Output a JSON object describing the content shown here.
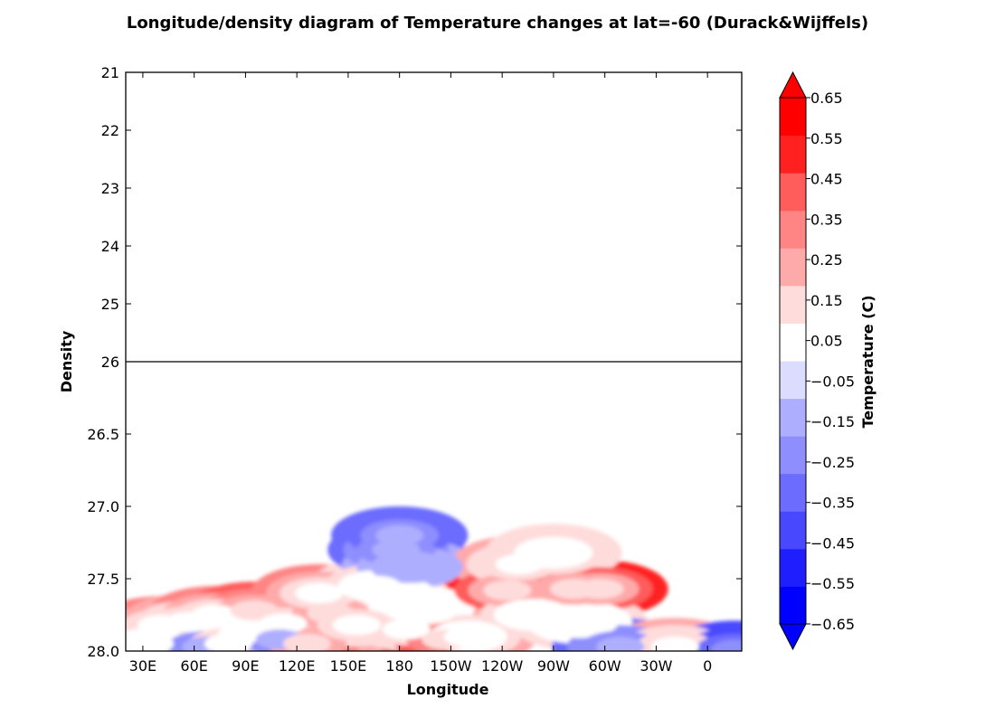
{
  "chart_data": {
    "type": "heatmap",
    "title": "Longitude/density diagram of Temperature changes at lat=-60 (Durack&Wijffels)",
    "xlabel": "Longitude",
    "ylabel": "Density",
    "x_ticks": [
      {
        "label": "30E",
        "lon": 30
      },
      {
        "label": "60E",
        "lon": 60
      },
      {
        "label": "90E",
        "lon": 90
      },
      {
        "label": "120E",
        "lon": 120
      },
      {
        "label": "150E",
        "lon": 150
      },
      {
        "label": "180",
        "lon": 180
      },
      {
        "label": "150W",
        "lon": 210
      },
      {
        "label": "120W",
        "lon": 240
      },
      {
        "label": "90W",
        "lon": 270
      },
      {
        "label": "60W",
        "lon": 300
      },
      {
        "label": "30W",
        "lon": 330
      },
      {
        "label": "0",
        "lon": 360
      }
    ],
    "xlim": [
      20,
      380
    ],
    "upper_panel": {
      "ylim": [
        21,
        26
      ],
      "y_ticks": [
        "21",
        "22",
        "23",
        "24",
        "25",
        "26"
      ],
      "y_values": [
        21,
        22,
        23,
        24,
        25,
        26
      ]
    },
    "lower_panel": {
      "ylim": [
        26,
        28
      ],
      "y_ticks": [
        "26.5",
        "27.0",
        "27.5",
        "28.0"
      ],
      "y_values": [
        26.5,
        27.0,
        27.5,
        28.0
      ]
    },
    "colorbar": {
      "label": "Temperature (C)",
      "levels": [
        -0.65,
        -0.55,
        -0.45,
        -0.35,
        -0.25,
        -0.15,
        -0.05,
        0.05,
        0.15,
        0.25,
        0.35,
        0.45,
        0.55,
        0.65
      ],
      "tick_labels": [
        "−0.65",
        "−0.55",
        "−0.45",
        "−0.35",
        "−0.25",
        "−0.15",
        "−0.05",
        "0.05",
        "0.15",
        "0.25",
        "0.35",
        "0.45",
        "0.55",
        "0.65"
      ],
      "colors": [
        "#0000ff",
        "#1e1eff",
        "#4848ff",
        "#6c6cff",
        "#8e8eff",
        "#aeaeff",
        "#dcdcff",
        "#ffffff",
        "#ffdcdc",
        "#ffaaaa",
        "#ff8484",
        "#ff5c5c",
        "#ff2020",
        "#ff0000"
      ],
      "extend": "both",
      "under_color": "#0000ff",
      "over_color": "#ff0000"
    },
    "field": [
      {
        "lon": 41,
        "dens": 27.82,
        "value": 0.38
      },
      {
        "lon": 57,
        "dens": 27.8,
        "value": 0.3
      },
      {
        "lon": 34,
        "dens": 27.95,
        "value": 0.25
      },
      {
        "lon": 72,
        "dens": 27.75,
        "value": 0.35
      },
      {
        "lon": 67,
        "dens": 27.97,
        "value": -0.35
      },
      {
        "lon": 95,
        "dens": 27.8,
        "value": 0.3
      },
      {
        "lon": 88,
        "dens": 27.88,
        "value": 0.25
      },
      {
        "lon": 80,
        "dens": 27.95,
        "value": 0.35
      },
      {
        "lon": 95,
        "dens": 27.72,
        "value": 0.5
      },
      {
        "lon": 112,
        "dens": 27.81,
        "value": 0.4
      },
      {
        "lon": 110,
        "dens": 27.92,
        "value": -0.3
      },
      {
        "lon": 140,
        "dens": 27.74,
        "value": 0.62
      },
      {
        "lon": 133,
        "dens": 27.6,
        "value": 0.35
      },
      {
        "lon": 126,
        "dens": 27.95,
        "value": 0.45
      },
      {
        "lon": 155,
        "dens": 27.82,
        "value": 0.3
      },
      {
        "lon": 167,
        "dens": 27.55,
        "value": 0.2
      },
      {
        "lon": 178,
        "dens": 27.6,
        "value": 0.25
      },
      {
        "lon": 184,
        "dens": 27.85,
        "value": 0.3
      },
      {
        "lon": 178,
        "dens": 27.3,
        "value": -0.3
      },
      {
        "lon": 180,
        "dens": 27.2,
        "value": -0.35
      },
      {
        "lon": 186,
        "dens": 27.42,
        "value": -0.15
      },
      {
        "lon": 193,
        "dens": 27.7,
        "value": 0.15
      },
      {
        "lon": 207,
        "dens": 27.92,
        "value": 0.65
      },
      {
        "lon": 220,
        "dens": 27.9,
        "value": 0.25
      },
      {
        "lon": 243,
        "dens": 27.58,
        "value": 0.6
      },
      {
        "lon": 250,
        "dens": 27.4,
        "value": 0.3
      },
      {
        "lon": 282,
        "dens": 27.57,
        "value": 0.55
      },
      {
        "lon": 297,
        "dens": 27.57,
        "value": 0.6
      },
      {
        "lon": 270,
        "dens": 27.32,
        "value": 0.2
      },
      {
        "lon": 258,
        "dens": 27.75,
        "value": 0.25
      },
      {
        "lon": 285,
        "dens": 27.8,
        "value": 0.15
      },
      {
        "lon": 309,
        "dens": 27.97,
        "value": -0.3
      },
      {
        "lon": 341,
        "dens": 27.97,
        "value": 0.3
      },
      {
        "lon": 376,
        "dens": 27.99,
        "value": -0.45
      }
    ]
  }
}
